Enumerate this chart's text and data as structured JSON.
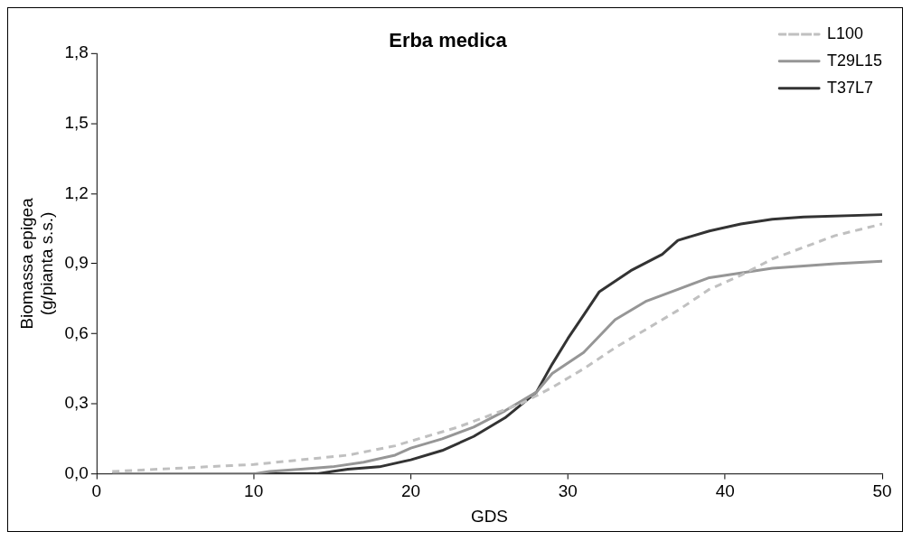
{
  "chart_data": {
    "type": "line",
    "title": "Erba medica",
    "xlabel": "GDS",
    "ylabel": "Biomassa epigea\n(g/pianta s.s.)",
    "xlim": [
      0,
      50
    ],
    "xticks": [
      0,
      10,
      20,
      30,
      40,
      50
    ],
    "ylim": [
      0,
      1.8
    ],
    "yticks": [
      {
        "value": 0,
        "label": "0,0"
      },
      {
        "value": 0.3,
        "label": "0,3"
      },
      {
        "value": 0.6,
        "label": "0,6"
      },
      {
        "value": 0.9,
        "label": "0,9"
      },
      {
        "value": 1.2,
        "label": "1,2"
      },
      {
        "value": 1.5,
        "label": "1,5"
      },
      {
        "value": 1.8,
        "label": "1,8"
      }
    ],
    "grid": false,
    "legend": "top right",
    "marker": "none",
    "series": [
      {
        "name": "L100",
        "color": "#c0c0c0",
        "line_style": "dashed",
        "x": [
          1,
          4,
          7,
          10,
          13,
          16,
          19,
          21,
          23,
          25,
          27,
          29,
          31,
          33,
          35,
          37,
          39,
          41,
          43,
          45,
          47,
          50
        ],
        "values": [
          0.01,
          0.02,
          0.03,
          0.04,
          0.06,
          0.08,
          0.12,
          0.16,
          0.2,
          0.25,
          0.3,
          0.37,
          0.45,
          0.54,
          0.62,
          0.7,
          0.79,
          0.85,
          0.92,
          0.97,
          1.02,
          1.07
        ]
      },
      {
        "name": "T29L15",
        "color": "#969696",
        "line_style": "solid",
        "x": [
          1,
          5,
          10,
          11,
          13,
          15,
          17,
          19,
          20,
          22,
          24,
          26,
          28,
          29,
          31,
          33,
          35,
          37,
          39,
          41,
          43,
          45,
          47,
          50
        ],
        "values": [
          0,
          0,
          0,
          0.01,
          0.02,
          0.03,
          0.05,
          0.08,
          0.11,
          0.15,
          0.2,
          0.27,
          0.35,
          0.43,
          0.52,
          0.66,
          0.74,
          0.79,
          0.84,
          0.86,
          0.88,
          0.89,
          0.9,
          0.91
        ]
      },
      {
        "name": "T37L7",
        "color": "#333333",
        "line_style": "solid",
        "x": [
          1,
          5,
          10,
          14,
          15,
          16,
          18,
          20,
          22,
          24,
          26,
          28,
          29,
          30,
          31,
          32,
          34,
          36,
          37,
          39,
          41,
          43,
          45,
          50
        ],
        "values": [
          0,
          0,
          0,
          0,
          0.01,
          0.02,
          0.03,
          0.06,
          0.1,
          0.16,
          0.24,
          0.35,
          0.47,
          0.58,
          0.68,
          0.78,
          0.87,
          0.94,
          1.0,
          1.04,
          1.07,
          1.09,
          1.1,
          1.11
        ]
      }
    ]
  }
}
